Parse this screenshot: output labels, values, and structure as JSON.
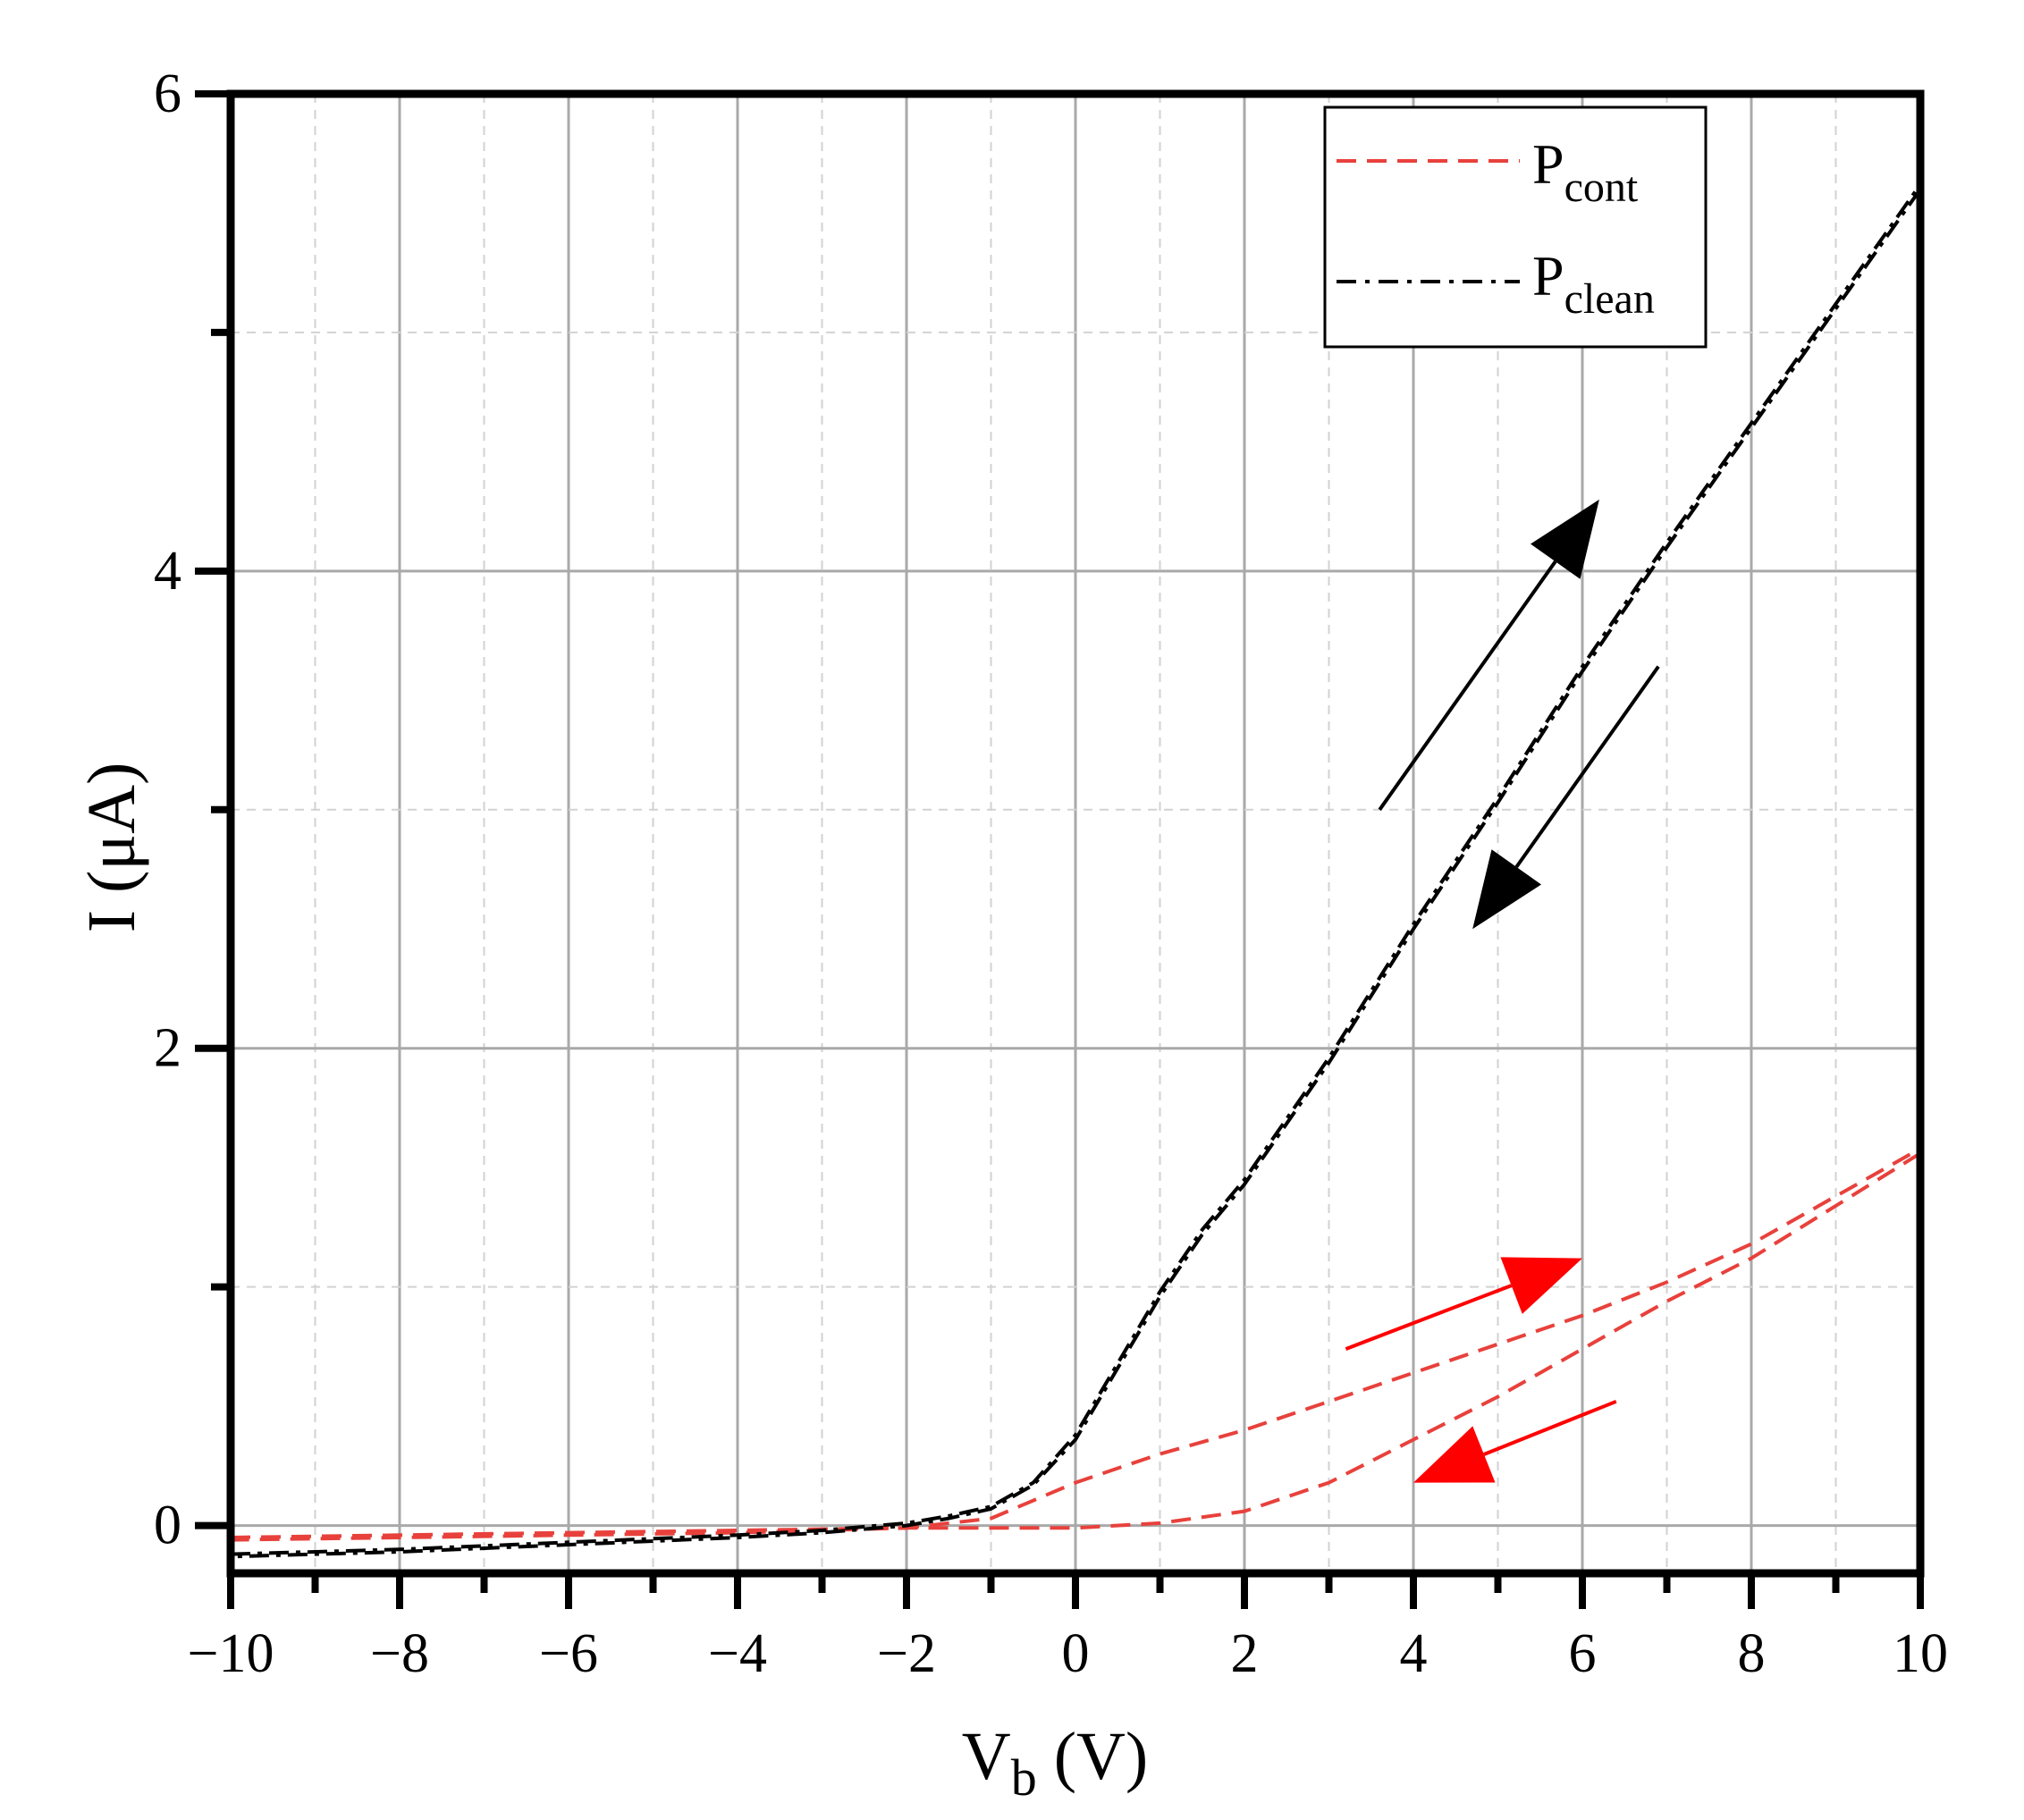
{
  "chart_data": {
    "type": "line",
    "title": "",
    "xlabel": "V",
    "xlabel_sub": "b",
    "xlabel_unit": " (V)",
    "ylabel": "I (μA)",
    "xlim": [
      -10,
      10
    ],
    "ylim": [
      -0.2,
      6
    ],
    "xticks": [
      -10,
      -8,
      -6,
      -4,
      -2,
      0,
      2,
      4,
      6,
      8,
      10
    ],
    "xtick_labels": [
      "−10",
      "−8",
      "−6",
      "−4",
      "−2",
      "0",
      "2",
      "4",
      "6",
      "8",
      "10"
    ],
    "yticks": [
      0,
      2,
      4,
      6
    ],
    "ytick_labels": [
      "0",
      "2",
      "4",
      "6"
    ],
    "grid": true,
    "legend_position": "top-right",
    "legend": [
      {
        "label": "P",
        "sub": "cont",
        "color": "#e8413c",
        "style": "dashed"
      },
      {
        "label": "P",
        "sub": "clean",
        "color": "#000000",
        "style": "dash-dot"
      }
    ],
    "series": [
      {
        "name": "Pcont forward sweep",
        "color": "#e8413c",
        "x": [
          -10,
          -8,
          -6,
          -4,
          -2,
          -1,
          0,
          1,
          2,
          3,
          4,
          5,
          6,
          7,
          8,
          9,
          10
        ],
        "y": [
          -0.05,
          -0.04,
          -0.03,
          -0.02,
          -0.01,
          0.03,
          0.18,
          0.3,
          0.4,
          0.52,
          0.64,
          0.76,
          0.88,
          1.02,
          1.18,
          1.38,
          1.58
        ]
      },
      {
        "name": "Pcont reverse sweep",
        "color": "#e8413c",
        "x": [
          10,
          9,
          8,
          7,
          6,
          5,
          4,
          3,
          2,
          1,
          0,
          -1,
          -2,
          -4,
          -6,
          -8,
          -10
        ],
        "y": [
          1.56,
          1.34,
          1.12,
          0.94,
          0.74,
          0.54,
          0.36,
          0.18,
          0.06,
          0.01,
          -0.01,
          -0.01,
          -0.01,
          -0.03,
          -0.04,
          -0.05,
          -0.06
        ]
      },
      {
        "name": "Pclean forward sweep",
        "color": "#000000",
        "x": [
          -10,
          -8,
          -6,
          -4,
          -3,
          -2,
          -1.5,
          -1,
          -0.5,
          0,
          0.5,
          1,
          1.5,
          2,
          3,
          4,
          5,
          6,
          7,
          8,
          9,
          10
        ],
        "y": [
          -0.12,
          -0.1,
          -0.07,
          -0.04,
          -0.02,
          0.01,
          0.04,
          0.08,
          0.18,
          0.38,
          0.68,
          0.98,
          1.24,
          1.45,
          1.96,
          2.52,
          3.05,
          3.6,
          4.12,
          4.62,
          5.12,
          5.62
        ]
      },
      {
        "name": "Pclean reverse sweep",
        "color": "#000000",
        "x": [
          10,
          9,
          8,
          7,
          6,
          5,
          4,
          3,
          2,
          1.5,
          1,
          0.5,
          0,
          -0.5,
          -1,
          -1.5,
          -2,
          -3,
          -4,
          -6,
          -8,
          -10
        ],
        "y": [
          5.6,
          5.1,
          4.6,
          4.1,
          3.58,
          3.03,
          2.5,
          1.94,
          1.43,
          1.22,
          0.96,
          0.66,
          0.36,
          0.17,
          0.07,
          0.03,
          0.0,
          -0.03,
          -0.05,
          -0.08,
          -0.11,
          -0.13
        ]
      }
    ],
    "annotations": [
      {
        "type": "arrow",
        "color": "#000000",
        "from": [
          3.6,
          3.0
        ],
        "to": [
          6.2,
          4.3
        ],
        "meaning": "forward sweep direction"
      },
      {
        "type": "arrow",
        "color": "#000000",
        "from": [
          6.9,
          3.6
        ],
        "to": [
          4.7,
          2.5
        ],
        "meaning": "reverse sweep direction"
      },
      {
        "type": "arrow",
        "color": "#ff0000",
        "from": [
          3.2,
          0.74
        ],
        "to": [
          6.0,
          1.12
        ],
        "meaning": "forward sweep direction"
      },
      {
        "type": "arrow",
        "color": "#ff0000",
        "from": [
          6.4,
          0.52
        ],
        "to": [
          4.0,
          0.18
        ],
        "meaning": "reverse sweep direction"
      }
    ]
  }
}
